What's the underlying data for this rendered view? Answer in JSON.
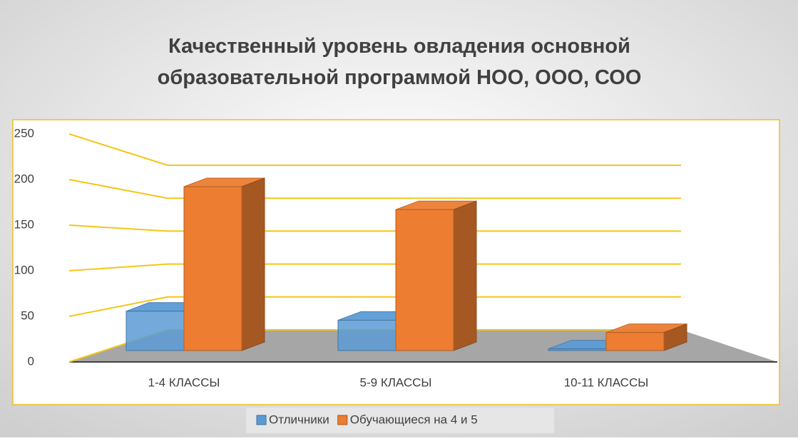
{
  "chart_data": {
    "type": "bar3d",
    "title": "Качественный уровень овладения основной образовательной программой НОО, ООО, СОО",
    "categories": [
      "1-4 КЛАССЫ",
      "5-9 КЛАССЫ",
      "10-11 КЛАССЫ"
    ],
    "series": [
      {
        "name": "Отличники",
        "color": "#5b9bd5",
        "values": [
          48,
          37,
          2
        ]
      },
      {
        "name": "Обучающиеся на 4 и 5",
        "color": "#ed7d31",
        "values": [
          200,
          172,
          22
        ]
      }
    ],
    "ylim": [
      0,
      250
    ],
    "yticks": [
      0,
      50,
      100,
      150,
      200,
      250
    ],
    "grid": true,
    "legend": "bottom"
  }
}
